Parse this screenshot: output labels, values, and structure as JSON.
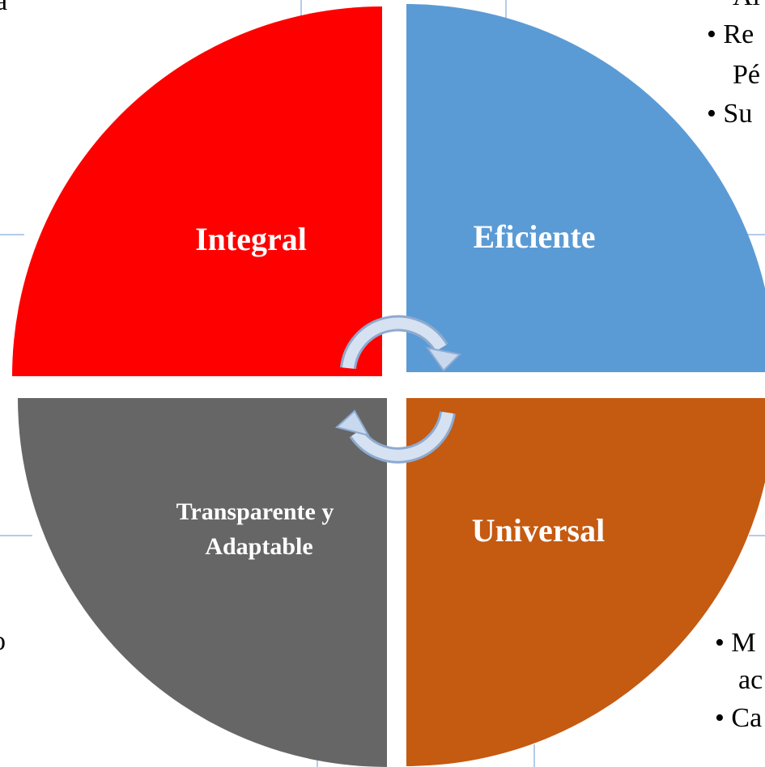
{
  "segments": [
    {
      "label": "Integral"
    },
    {
      "label": "Eficiente"
    },
    {
      "label": "Transparente y",
      "label2": "Adaptable"
    },
    {
      "label": "Universal"
    }
  ],
  "fragments": {
    "left_top": "a",
    "left_bottom": "o",
    "right_top": [
      "Al",
      "• Re",
      "Pé",
      "• Su"
    ],
    "right_bottom": [
      "• M",
      "ac",
      "• Ca"
    ]
  }
}
